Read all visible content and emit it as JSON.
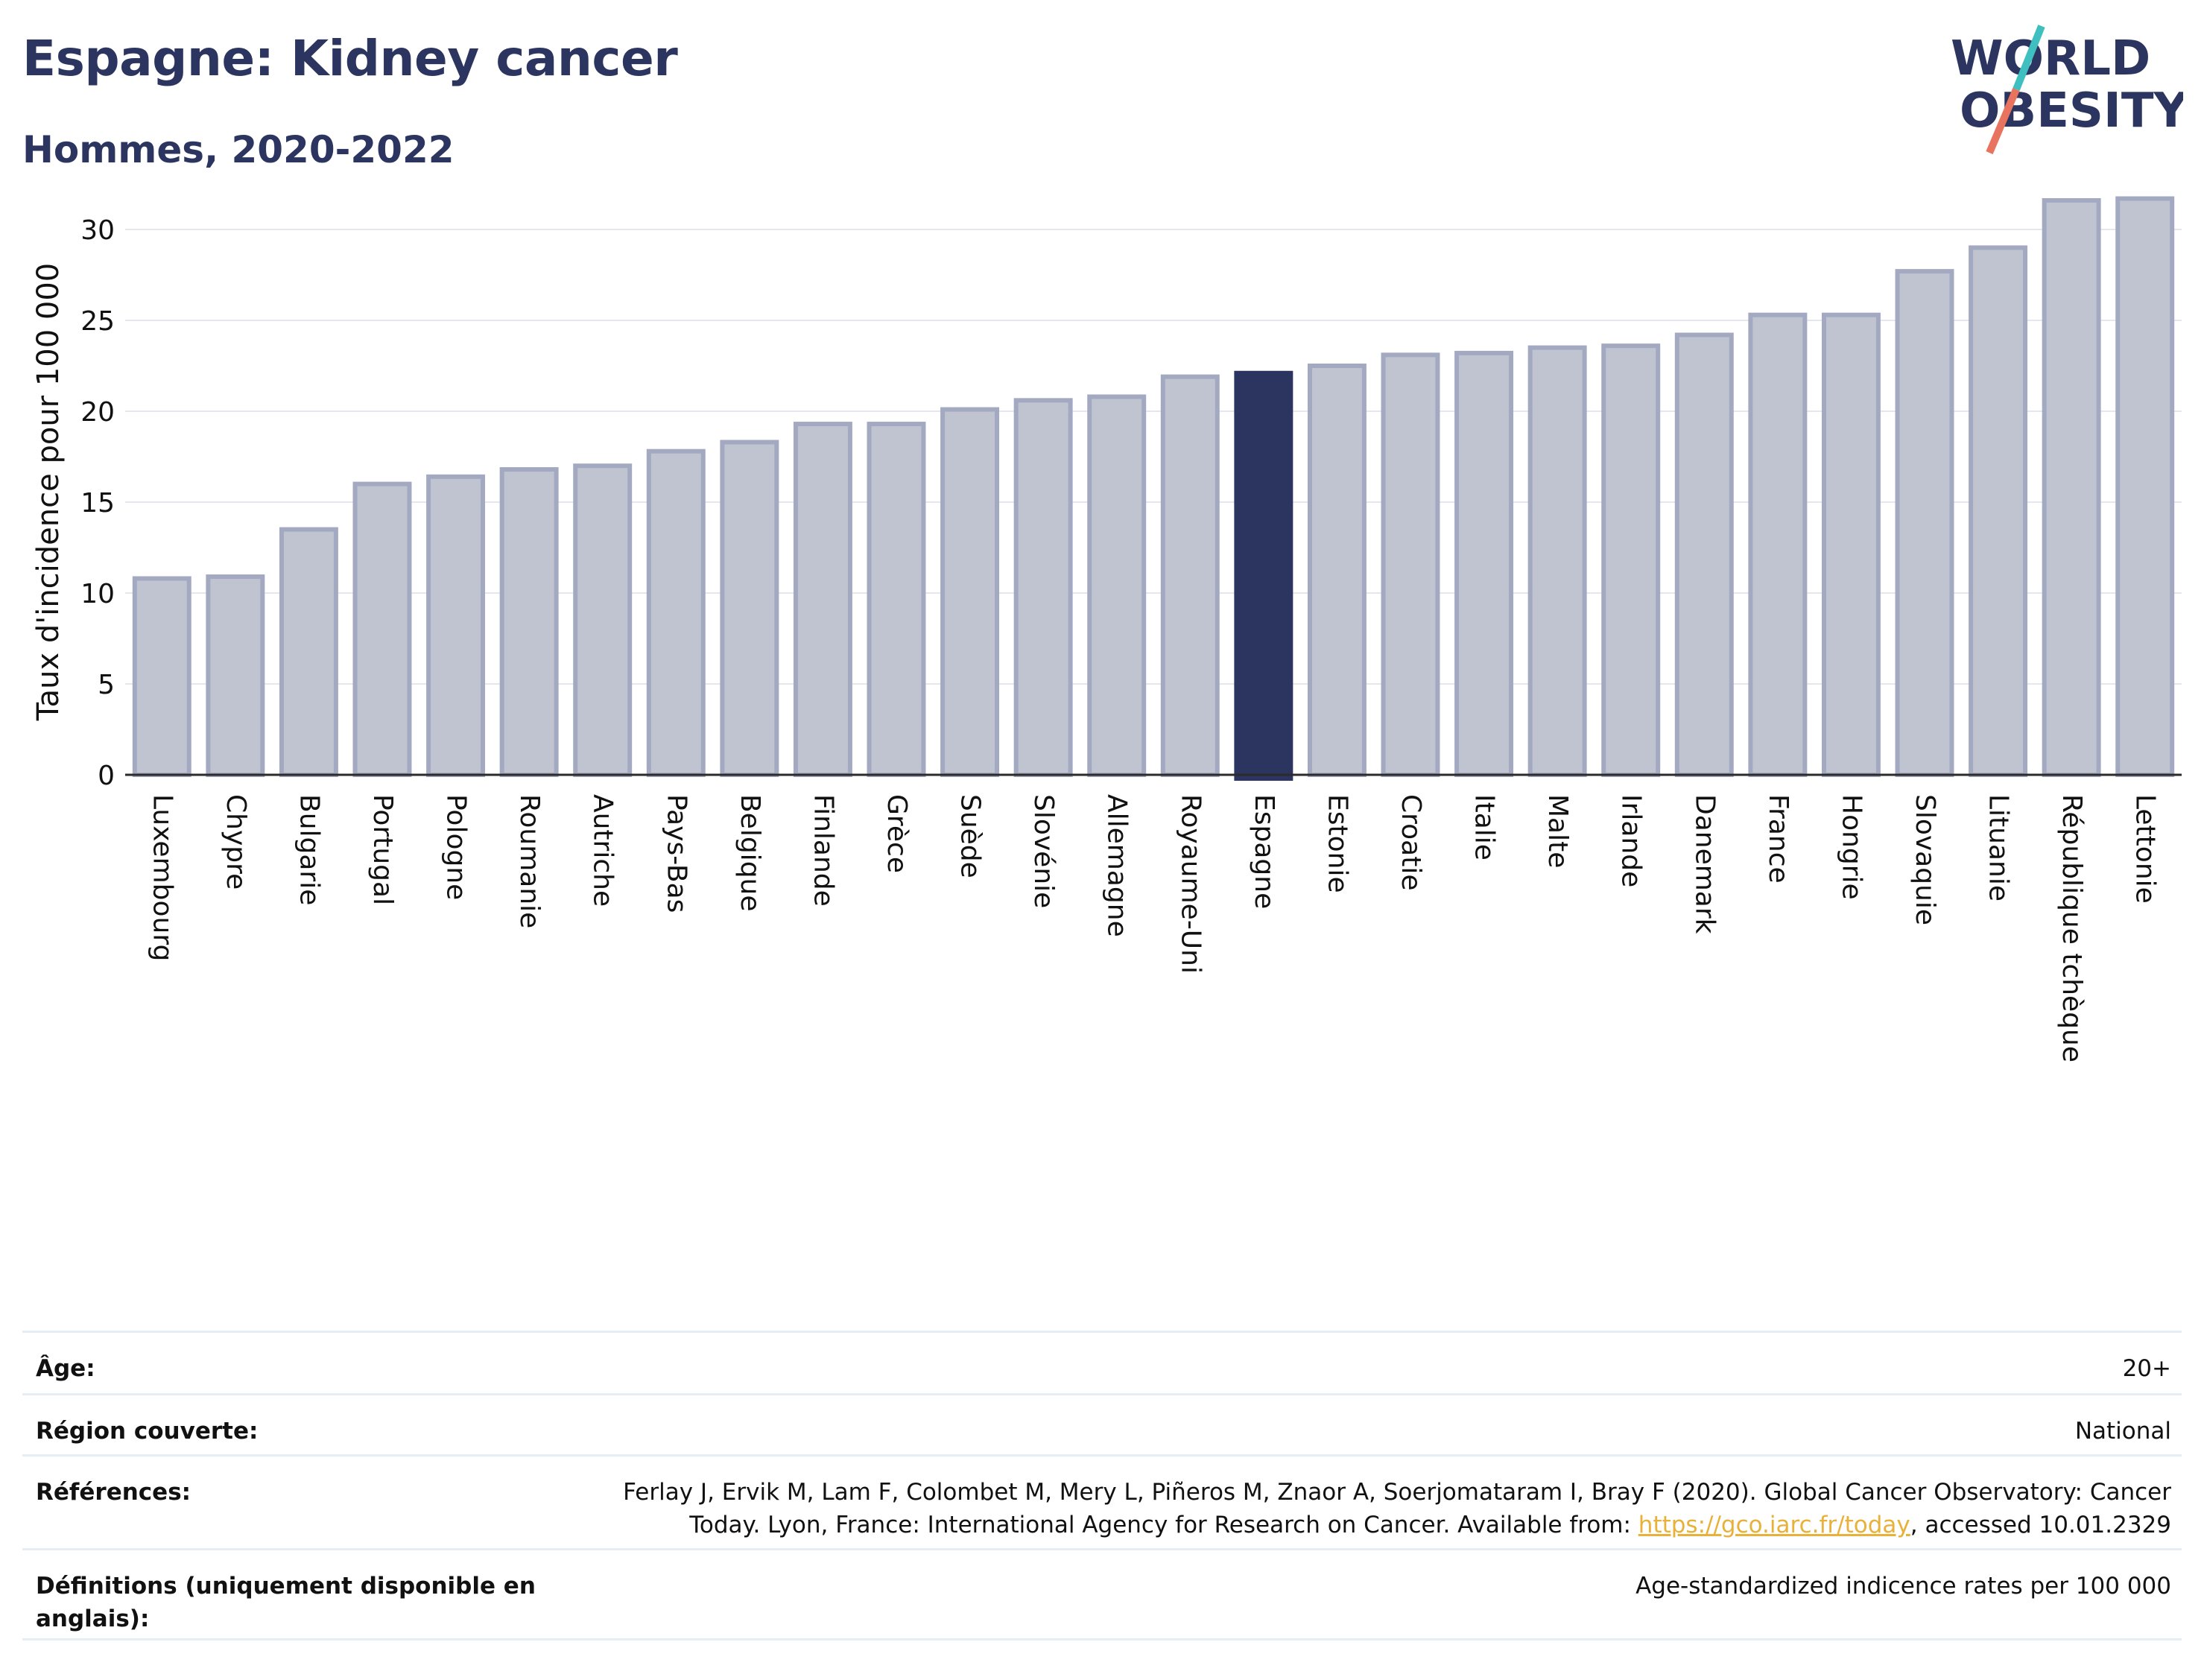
{
  "title": "Espagne: Kidney cancer",
  "subtitle": "Hommes, 2020-2022",
  "logo": {
    "line1": "WORLD",
    "line2": "OBESITY",
    "slash_colors": [
      "#3fbfbf",
      "#e8735f"
    ]
  },
  "colors": {
    "bar": "#c0c4d1",
    "bar_edge": "#a3a9c0",
    "highlight": "#2b3560",
    "title": "#2b3560",
    "grid": "#e6e6ee",
    "link": "#e8b13a"
  },
  "chart_data": {
    "type": "bar",
    "ylabel": "Taux d'incidence pour 100 000",
    "ylim": [
      0,
      32
    ],
    "yticks": [
      0,
      5,
      10,
      15,
      20,
      25,
      30
    ],
    "highlight": "Espagne",
    "grid": true,
    "categories": [
      "Luxembourg",
      "Chypre",
      "Bulgarie",
      "Portugal",
      "Pologne",
      "Roumanie",
      "Autriche",
      "Pays-Bas",
      "Belgique",
      "Finlande",
      "Grèce",
      "Suède",
      "Slovénie",
      "Allemagne",
      "Royaume-Uni",
      "Espagne",
      "Estonie",
      "Croatie",
      "Italie",
      "Malte",
      "Irlande",
      "Danemark",
      "France",
      "Hongrie",
      "Slovaquie",
      "Lituanie",
      "République tchèque",
      "Lettonie"
    ],
    "values": [
      10.8,
      10.9,
      13.5,
      16.0,
      16.4,
      16.8,
      17.0,
      17.8,
      18.3,
      19.3,
      19.3,
      20.1,
      20.6,
      20.8,
      21.9,
      22.1,
      22.5,
      23.1,
      23.2,
      23.5,
      23.6,
      24.2,
      25.3,
      25.3,
      27.7,
      29.0,
      31.6,
      31.7
    ]
  },
  "meta": {
    "age_label": "Âge:",
    "age_value": "20+",
    "region_label": "Région couverte:",
    "region_value": "National",
    "references_label": "Références:",
    "references_text_1": "Ferlay J, Ervik M, Lam F, Colombet M, Mery L, Piñeros M, Znaor A, Soerjomataram I, Bray F (2020). Global Cancer Observatory: Cancer Today. Lyon, France: International Agency for Research on Cancer. Available from: ",
    "references_link": "https://gco.iarc.fr/today",
    "references_text_2": ", accessed 10.01.2329",
    "definitions_label": "Définitions (uniquement disponible en anglais):",
    "definitions_value": "Age-standardized indicence rates per 100 000"
  }
}
